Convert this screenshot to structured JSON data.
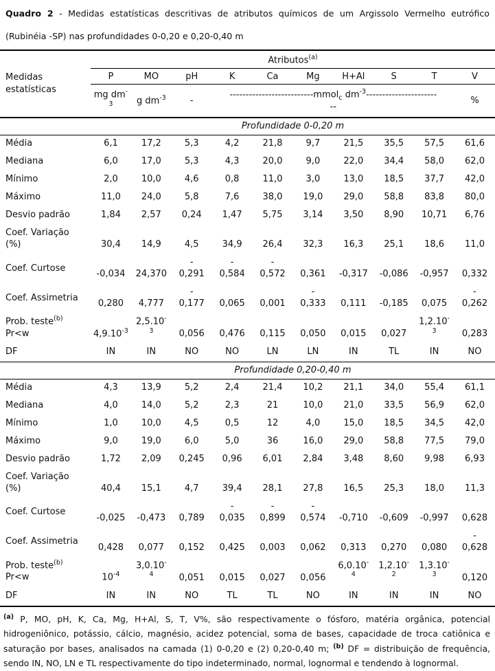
{
  "colors": {
    "text": "#111111",
    "background": "#ffffff",
    "rule": "#000000"
  },
  "title": {
    "bold": "Quadro 2",
    "line1_rest": " - Medidas estatísticas descritivas de atributos químicos de um Argissolo Vermelho eutrófico",
    "line2": "(Rubinéia -SP) nas profundidades 0-0,20 e 0,20-0,40 m"
  },
  "table": {
    "corner_label_html": "Medidas<br>estatísticas",
    "attributes_header_html": "Atributos<sup>(a)</sup>",
    "columns": [
      "P",
      "MO",
      "pH",
      "K",
      "Ca",
      "Mg",
      "H+Al",
      "S",
      "T",
      "V"
    ],
    "units": {
      "p_html": "mg dm<sup>-</sup><br><sup>3</sup>",
      "mo_html": "g dm<sup>-3</sup>",
      "ph": "-",
      "span_html": "--------------------------mmol<sub>c</sub> dm<sup>-3</sup>----------------------<br>--",
      "v": "%"
    },
    "sections": [
      {
        "heading": "Profundidade 0-0,20 m",
        "rows": [
          {
            "label_html": "Média",
            "values": [
              "6,1",
              "17,2",
              "5,3",
              "4,2",
              "21,8",
              "9,7",
              "21,5",
              "35,5",
              "57,5",
              "61,6"
            ]
          },
          {
            "label_html": "Mediana",
            "values": [
              "6,0",
              "17,0",
              "5,3",
              "4,3",
              "20,0",
              "9,0",
              "22,0",
              "34,4",
              "58,0",
              "62,0"
            ]
          },
          {
            "label_html": "Mínimo",
            "values": [
              "2,0",
              "10,0",
              "4,6",
              "0,8",
              "11,0",
              "3,0",
              "13,0",
              "18,5",
              "37,7",
              "42,0"
            ]
          },
          {
            "label_html": "Máximo",
            "values": [
              "11,0",
              "24,0",
              "5,8",
              "7,6",
              "38,0",
              "19,0",
              "29,0",
              "58,8",
              "83,8",
              "80,0"
            ]
          },
          {
            "label_html": "Desvio padrão",
            "values": [
              "1,84",
              "2,57",
              "0,24",
              "1,47",
              "5,75",
              "3,14",
              "3,50",
              "8,90",
              "10,71",
              "6,76"
            ]
          },
          {
            "label_html": "Coef. Variação<br>(%)",
            "values": [
              "30,4",
              "14,9",
              "4,5",
              "34,9",
              "26,4",
              "32,3",
              "16,3",
              "25,1",
              "18,6",
              "11,0"
            ]
          },
          {
            "label_html": "Coef. Curtose",
            "values": [
              "-0,034",
              "24,370",
              "-<br>0,291",
              "-<br>0,584",
              "-<br>0,572",
              "0,361",
              "-0,317",
              "-0,086",
              "-0,957",
              "0,332"
            ]
          },
          {
            "label_html": "Coef. Assimetria",
            "values": [
              "0,280",
              "4,777",
              "-<br>0,177",
              "0,065",
              "0,001",
              "-<br>0,333",
              "0,111",
              "-0,185",
              "0,075",
              "-<br>0,262"
            ]
          },
          {
            "label_html": "Prob. teste<sup>(b)</sup><br>Pr&lt;w",
            "values": [
              "4,9.10<sup>-3</sup>",
              "2,5.10<sup>-</sup><br><sup>3</sup>",
              "0,056",
              "0,476",
              "0,115",
              "0,050",
              "0,015",
              "0,027",
              "1,2.10<sup>-</sup><br><sup>3</sup>",
              "0,283"
            ]
          },
          {
            "label_html": "DF",
            "values": [
              "IN",
              "IN",
              "NO",
              "NO",
              "LN",
              "LN",
              "IN",
              "TL",
              "IN",
              "NO"
            ]
          }
        ]
      },
      {
        "heading": "Profundidade 0,20-0,40 m",
        "rows": [
          {
            "label_html": "Média",
            "values": [
              "4,3",
              "13,9",
              "5,2",
              "2,4",
              "21,4",
              "10,2",
              "21,1",
              "34,0",
              "55,4",
              "61,1"
            ]
          },
          {
            "label_html": "Mediana",
            "values": [
              "4,0",
              "14,0",
              "5,2",
              "2,3",
              "21",
              "10,0",
              "21,0",
              "33,5",
              "56,9",
              "62,0"
            ]
          },
          {
            "label_html": "Mínimo",
            "values": [
              "1,0",
              "10,0",
              "4,5",
              "0,5",
              "12",
              "4,0",
              "15,0",
              "18,5",
              "34,5",
              "42,0"
            ]
          },
          {
            "label_html": "Máximo",
            "values": [
              "9,0",
              "19,0",
              "6,0",
              "5,0",
              "36",
              "16,0",
              "29,0",
              "58,8",
              "77,5",
              "79,0"
            ]
          },
          {
            "label_html": "Desvio padrão",
            "values": [
              "1,72",
              "2,09",
              "0,245",
              "0,96",
              "6,01",
              "2,84",
              "3,48",
              "8,60",
              "9,98",
              "6,93"
            ]
          },
          {
            "label_html": "Coef. Variação<br>(%)",
            "values": [
              "40,4",
              "15,1",
              "4,7",
              "39,4",
              "28,1",
              "27,8",
              "16,5",
              "25,3",
              "18,0",
              "11,3"
            ]
          },
          {
            "label_html": "Coef. Curtose",
            "values": [
              "-0,025",
              "-0,473",
              "0,789",
              "-<br>0,035",
              "-<br>0,899",
              "-<br>0,574",
              "-0,710",
              "-0,609",
              "-0,997",
              "0,628"
            ]
          },
          {
            "label_html": "Coef. Assimetria",
            "values": [
              "0,428",
              "0,077",
              "0,152",
              "0,425",
              "0,003",
              "0,062",
              "0,313",
              "0,270",
              "0,080",
              "-<br>0,628"
            ]
          },
          {
            "label_html": "Prob. teste<sup>(b)</sup><br>Pr&lt;w",
            "values": [
              "10<sup>-4</sup>",
              "3,0.10<sup>-</sup><br><sup>4</sup>",
              "0,051",
              "0,015",
              "0,027",
              "0,056",
              "6,0.10<sup>-</sup><br><sup>4</sup>",
              "1,2.10<sup>-</sup><br><sup>2</sup>",
              "1,3.10<sup>-</sup><br><sup>3</sup>",
              "0,120"
            ]
          },
          {
            "label_html": "DF",
            "values": [
              "IN",
              "IN",
              "NO",
              "TL",
              "TL",
              "NO",
              "IN",
              "IN",
              "IN",
              "NO"
            ]
          }
        ]
      }
    ]
  },
  "footnote_html": "<sup>(a)</sup> P, MO, pH, K, Ca, Mg, H+Al, S, T, V%, são respectivamente o fósforo, matéria orgânica, potencial hidrogeniônico, potássio, cálcio, magnésio, acidez potencial, soma de bases, capacidade de troca catiônica e saturação por bases, analisados na camada (1) 0-0,20 e (2) 0,20-0,40 m; <sup>(b)</sup> DF = distribuição de frequência, sendo IN, NO, LN e TL respectivamente do tipo indeterminado, normal, lognormal e tendendo à lognormal."
}
